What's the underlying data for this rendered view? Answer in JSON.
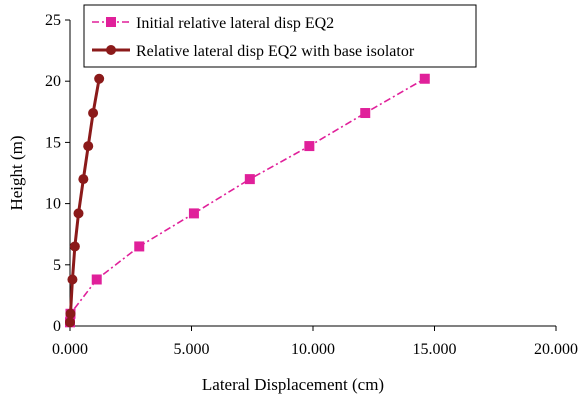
{
  "chart_data": {
    "type": "scatter",
    "xlabel": "Lateral Displacement (cm)",
    "ylabel": "Height (m)",
    "xlim": [
      0,
      20
    ],
    "ylim": [
      0,
      25
    ],
    "x_ticks": [
      0,
      5,
      10,
      15,
      20
    ],
    "x_tick_labels": [
      "0.000",
      "5.000",
      "10.000",
      "15.000",
      "20.000"
    ],
    "y_ticks": [
      0,
      5,
      10,
      15,
      20,
      25
    ],
    "y_tick_labels": [
      "0",
      "5",
      "10",
      "15",
      "20",
      "25"
    ],
    "grid": false,
    "legend_position": "top",
    "series": [
      {
        "name": "Initial relative lateral disp EQ2",
        "color": "#e0209a",
        "marker": "square",
        "line_style": "dash-dot",
        "x": [
          0.0,
          0.02,
          1.1,
          2.85,
          5.1,
          7.4,
          9.85,
          12.15,
          14.6
        ],
        "y": [
          0.3,
          1.0,
          3.8,
          6.5,
          9.2,
          12.0,
          14.7,
          17.4,
          20.2
        ]
      },
      {
        "name": "Relative lateral disp EQ2 with base isolator",
        "color": "#8b1a1a",
        "marker": "circle",
        "line_style": "solid",
        "x": [
          0.0,
          0.02,
          0.1,
          0.2,
          0.35,
          0.55,
          0.75,
          0.95,
          1.2
        ],
        "y": [
          0.3,
          1.0,
          3.8,
          6.5,
          9.2,
          12.0,
          14.7,
          17.4,
          20.2
        ]
      }
    ]
  }
}
